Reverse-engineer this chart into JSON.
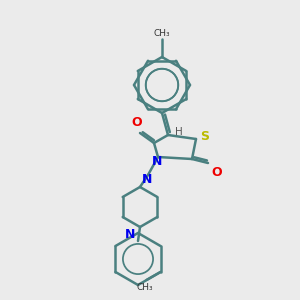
{
  "bg_color": "#ebebeb",
  "bond_color": "#4a8080",
  "bond_width": 1.8,
  "atom_colors": {
    "N": "#0000ee",
    "O": "#ee0000",
    "S": "#bbbb00",
    "H": "#555555"
  },
  "figsize": [
    3.0,
    3.0
  ],
  "dpi": 100
}
